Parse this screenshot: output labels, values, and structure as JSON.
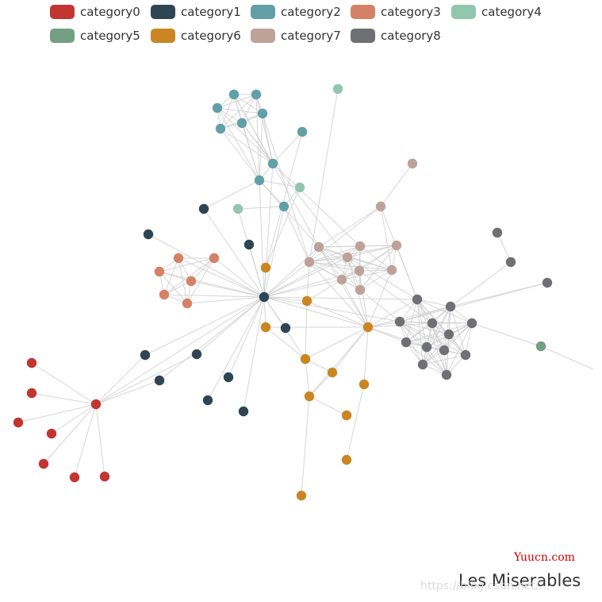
{
  "chart_data": {
    "type": "network",
    "title": "Les Miserables",
    "legend": {
      "placement": "top",
      "items": [
        {
          "name": "category0",
          "color": "#c23531"
        },
        {
          "name": "category1",
          "color": "#2f4554"
        },
        {
          "name": "category2",
          "color": "#61a0a8"
        },
        {
          "name": "category3",
          "color": "#d48265"
        },
        {
          "name": "category4",
          "color": "#91c7ae"
        },
        {
          "name": "category5",
          "color": "#749f83"
        },
        {
          "name": "category6",
          "color": "#ca8622"
        },
        {
          "name": "category7",
          "color": "#bda29a"
        },
        {
          "name": "category8",
          "color": "#6e7074"
        }
      ]
    }
  },
  "watermark": {
    "brand": "Yuucn.com",
    "url": "https://blog.csdn.net/..."
  }
}
